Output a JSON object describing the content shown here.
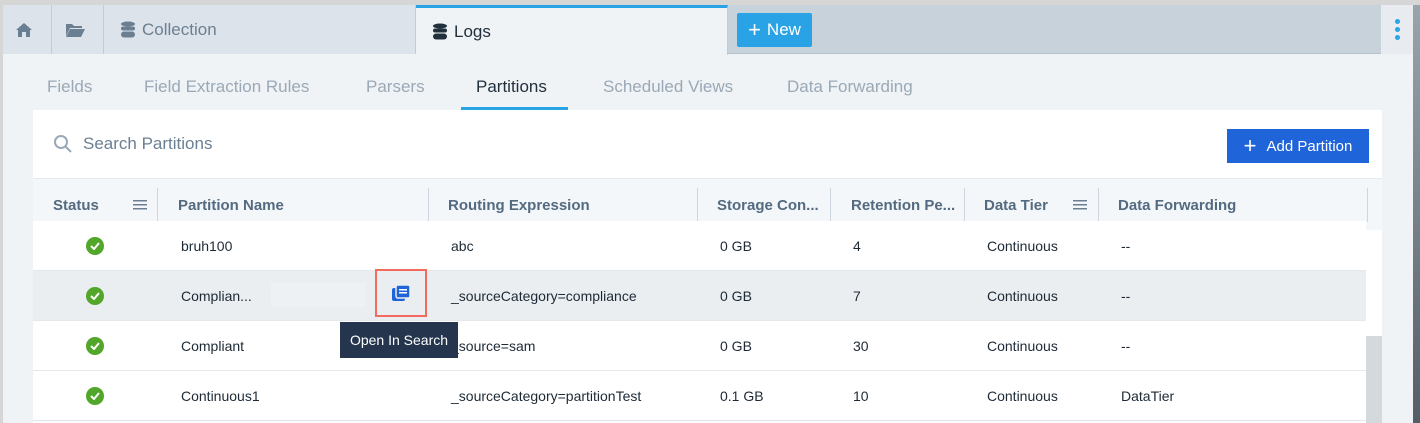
{
  "tabs": [
    {
      "label": "Collection",
      "icon": "database-icon"
    },
    {
      "label": "Logs",
      "icon": "database-icon",
      "active": true
    }
  ],
  "new_label": "New",
  "subtabs": [
    "Fields",
    "Field Extraction Rules",
    "Parsers",
    "Partitions",
    "Scheduled Views",
    "Data Forwarding"
  ],
  "active_subtab": "Partitions",
  "search": {
    "placeholder": "Search Partitions"
  },
  "add_label": "Add Partition",
  "columns": [
    "Status",
    "Partition Name",
    "Routing Expression",
    "Storage Con...",
    "Retention Pe...",
    "Data Tier",
    "Data Forwarding"
  ],
  "rows": [
    {
      "status": "ok",
      "name": "bruh100",
      "routing": "abc",
      "storage": "0 GB",
      "retention": "4",
      "tier": "Continuous",
      "forwarding": "--"
    },
    {
      "status": "ok",
      "name": "Complian...",
      "routing": "_sourceCategory=compliance",
      "storage": "0 GB",
      "retention": "7",
      "tier": "Continuous",
      "forwarding": "--"
    },
    {
      "status": "ok",
      "name": "Compliant",
      "routing": "_source=sam",
      "storage": "0 GB",
      "retention": "30",
      "tier": "Continuous",
      "forwarding": "--"
    },
    {
      "status": "ok",
      "name": "Continuous1",
      "routing": "_sourceCategory=partitionTest",
      "storage": "0.1 GB",
      "retention": "10",
      "tier": "Continuous",
      "forwarding": "DataTier"
    }
  ],
  "tooltip": "Open In Search",
  "colors": {
    "accent": "#2aa3e6",
    "primary_button": "#1f64d8",
    "status_ok": "#52a629",
    "highlight": "#f26b5e"
  }
}
